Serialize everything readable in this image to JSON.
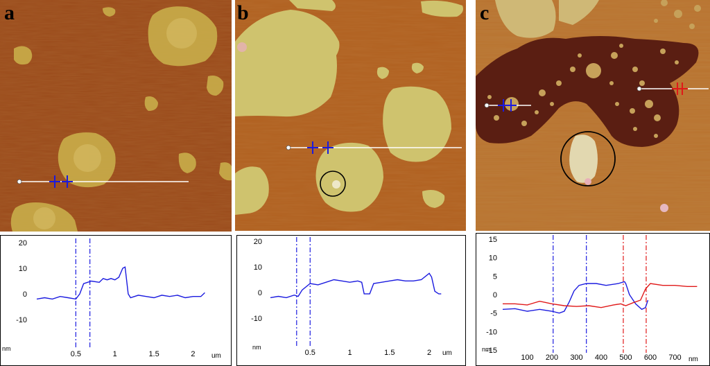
{
  "panels": [
    {
      "letter": "a",
      "plot": {
        "ytick_labels": [
          "20",
          "10",
          "0",
          "-10"
        ],
        "ylabel": "nm",
        "xtick_labels": [
          "0.5",
          "1",
          "1.5",
          "2"
        ],
        "xlabel": "um"
      }
    },
    {
      "letter": "b",
      "plot": {
        "ytick_labels": [
          "20",
          "10",
          "0",
          "-10"
        ],
        "ylabel": "nm",
        "xtick_labels": [
          "0.5",
          "1",
          "1.5",
          "2"
        ],
        "xlabel": "um"
      }
    },
    {
      "letter": "c",
      "plot": {
        "ytick_labels": [
          "15",
          "10",
          "5",
          "0",
          "-5",
          "-10",
          "-15"
        ],
        "ylabel": "nm",
        "xtick_labels": [
          "100",
          "200",
          "300",
          "400",
          "500",
          "600",
          "700"
        ],
        "xlabel": "nm"
      }
    }
  ],
  "colors": {
    "afm_dark": "#8a3e16",
    "afm_mid": "#b86a2c",
    "afm_island": "#c9b04a",
    "afm_island_b": "#cfc26e",
    "afm_deep": "#5a1f10",
    "blue_trace": "#1a1adf",
    "red_trace": "#e01818",
    "scan_line": "#ffffff"
  },
  "chart_data": [
    {
      "type": "line",
      "xlabel": "um",
      "ylabel": "nm",
      "ylim": [
        -20,
        20
      ],
      "xlim": [
        0,
        2.2
      ],
      "markers_x": [
        0.5,
        0.68
      ],
      "series": [
        {
          "x": [
            0.0,
            0.1,
            0.2,
            0.3,
            0.4,
            0.5,
            0.55,
            0.6,
            0.7,
            0.8,
            0.85,
            0.9,
            0.95,
            1.0,
            1.05,
            1.1,
            1.13,
            1.17,
            1.2,
            1.3,
            1.4,
            1.5,
            1.6,
            1.7,
            1.8,
            1.9,
            2.0,
            2.1,
            2.15
          ],
          "y": [
            -2,
            -1.5,
            -2,
            -1,
            -1.5,
            -2,
            0,
            4,
            5,
            4.5,
            6,
            5.5,
            6,
            5.5,
            6.5,
            10,
            10.5,
            0,
            -1.5,
            -0.5,
            -1,
            -1.5,
            -0.5,
            -1,
            -0.5,
            -1.5,
            -1,
            -1,
            0.5
          ]
        }
      ]
    },
    {
      "type": "line",
      "xlabel": "um",
      "ylabel": "nm",
      "ylim": [
        -20,
        20
      ],
      "xlim": [
        0,
        2.2
      ],
      "markers_x": [
        0.33,
        0.5
      ],
      "series": [
        {
          "x": [
            0.0,
            0.1,
            0.2,
            0.3,
            0.35,
            0.4,
            0.5,
            0.6,
            0.7,
            0.8,
            0.9,
            1.0,
            1.1,
            1.15,
            1.18,
            1.25,
            1.3,
            1.4,
            1.5,
            1.6,
            1.7,
            1.8,
            1.9,
            2.0,
            2.03,
            2.07,
            2.12,
            2.15
          ],
          "y": [
            -2,
            -1.5,
            -2,
            -1,
            -1.5,
            1,
            3.5,
            3,
            4,
            5,
            4.5,
            4,
            4.5,
            4,
            -0.5,
            -0.5,
            3.5,
            4,
            4.5,
            5,
            4.5,
            4.5,
            5,
            7.5,
            6,
            0.5,
            -0.5,
            -0.5
          ]
        }
      ]
    },
    {
      "type": "line",
      "xlabel": "nm",
      "ylabel": "nm",
      "ylim": [
        -15,
        15
      ],
      "xlim": [
        0,
        800
      ],
      "markers_x": [
        205,
        340,
        490,
        583
      ],
      "series": [
        {
          "x": [
            0,
            50,
            100,
            150,
            200,
            230,
            250,
            270,
            290,
            310,
            340,
            380,
            420,
            470,
            495,
            500,
            515,
            540,
            565,
            580,
            590
          ],
          "y": [
            -4,
            -3.8,
            -4.5,
            -4,
            -4.5,
            -5,
            -4.5,
            -2,
            1,
            2.5,
            3,
            3,
            2.5,
            3,
            3.5,
            3,
            0,
            -2.5,
            -4,
            -3.5,
            -1.5
          ]
        },
        {
          "x": [
            0,
            50,
            100,
            150,
            200,
            250,
            300,
            350,
            400,
            450,
            480,
            500,
            530,
            560,
            580,
            600,
            650,
            700,
            750,
            790
          ],
          "y": [
            -2.5,
            -2.5,
            -2.8,
            -1.8,
            -2.5,
            -3,
            -3.2,
            -3,
            -3.5,
            -2.8,
            -2.5,
            -3,
            -2.2,
            -1.5,
            1.5,
            3,
            2.5,
            2.5,
            2.2,
            2.2
          ]
        }
      ]
    }
  ]
}
